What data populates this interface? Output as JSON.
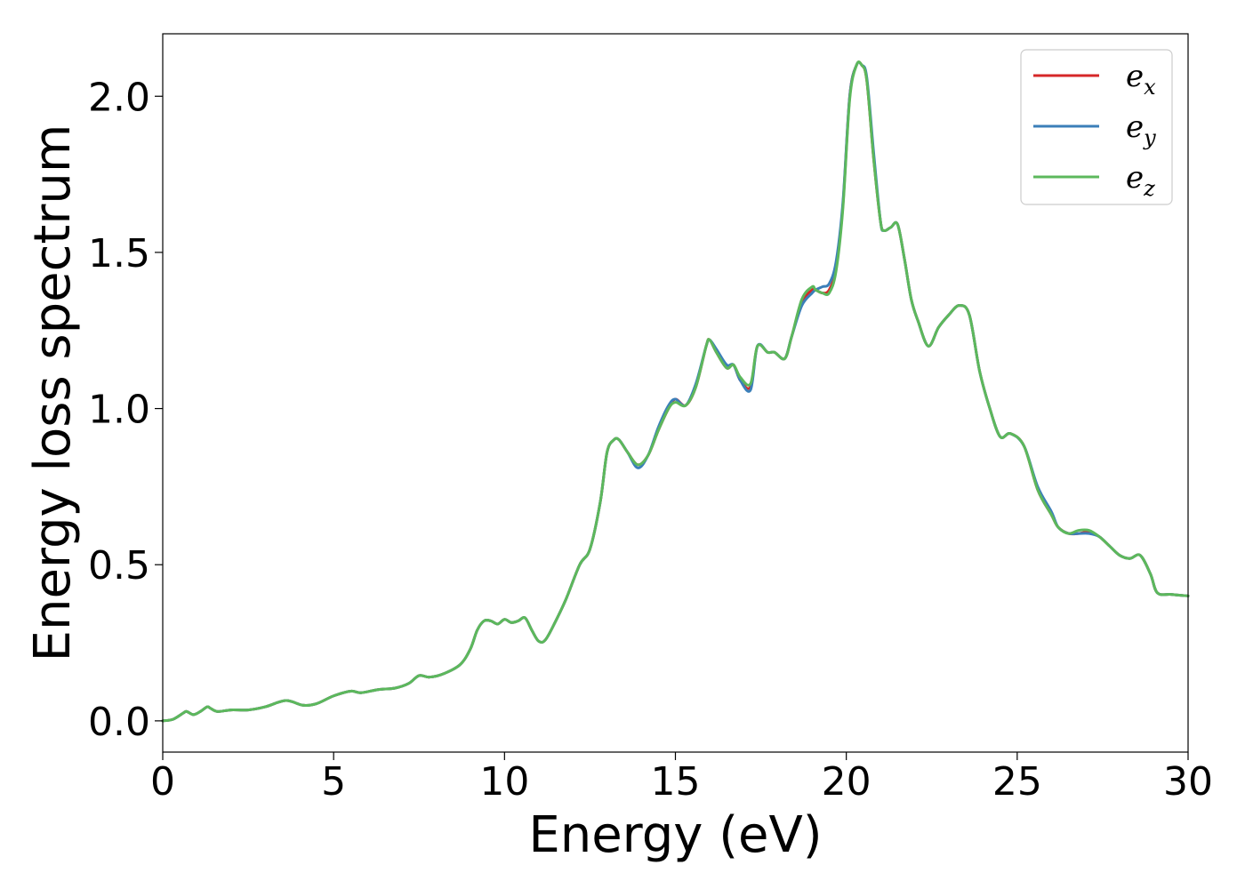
{
  "chart_data": {
    "type": "line",
    "xlabel": "Energy (eV)",
    "ylabel": "Energy loss spectrum",
    "xlim": [
      0,
      30
    ],
    "ylim": [
      -0.1,
      2.2
    ],
    "xticks": [
      0,
      5,
      10,
      15,
      20,
      25,
      30
    ],
    "xtick_labels": [
      "0",
      "5",
      "10",
      "15",
      "20",
      "25",
      "30"
    ],
    "yticks": [
      0.0,
      0.5,
      1.0,
      1.5,
      2.0
    ],
    "ytick_labels": [
      "0.0",
      "0.5",
      "1.0",
      "1.5",
      "2.0"
    ],
    "grid": false,
    "legend_position": "top-right",
    "x": [
      0,
      0.3,
      0.6,
      0.7,
      0.9,
      1.1,
      1.3,
      1.4,
      1.6,
      2.0,
      2.5,
      3.0,
      3.6,
      4.1,
      4.5,
      5.0,
      5.5,
      5.8,
      6.3,
      6.8,
      7.2,
      7.5,
      7.8,
      8.2,
      8.7,
      9.0,
      9.2,
      9.4,
      9.6,
      9.8,
      10.0,
      10.2,
      10.4,
      10.6,
      10.8,
      11.0,
      11.2,
      11.5,
      11.8,
      12.2,
      12.5,
      12.8,
      13.0,
      13.2,
      13.35,
      13.6,
      13.9,
      14.2,
      14.5,
      14.8,
      15.0,
      15.3,
      15.6,
      15.9,
      16.0,
      16.2,
      16.5,
      16.7,
      16.9,
      17.2,
      17.4,
      17.7,
      17.9,
      18.2,
      18.4,
      18.7,
      19.0,
      19.1,
      19.3,
      19.5,
      19.7,
      19.9,
      20.1,
      20.3,
      20.45,
      20.6,
      20.8,
      21.0,
      21.1,
      21.3,
      21.5,
      21.7,
      21.9,
      22.1,
      22.4,
      22.7,
      23.0,
      23.3,
      23.6,
      23.9,
      24.2,
      24.5,
      24.8,
      25.2,
      25.6,
      26.0,
      26.2,
      26.5,
      26.8,
      27.1,
      27.4,
      27.7,
      28.0,
      28.3,
      28.6,
      28.9,
      29.1,
      29.5,
      30.0
    ],
    "series": [
      {
        "name": "e_x",
        "label_base": "e",
        "label_sub": "x",
        "color": "#d62728",
        "values": [
          0.0,
          0.005,
          0.025,
          0.03,
          0.02,
          0.03,
          0.045,
          0.04,
          0.03,
          0.035,
          0.035,
          0.045,
          0.065,
          0.05,
          0.055,
          0.08,
          0.095,
          0.09,
          0.1,
          0.105,
          0.12,
          0.145,
          0.14,
          0.15,
          0.18,
          0.23,
          0.29,
          0.32,
          0.32,
          0.31,
          0.325,
          0.315,
          0.32,
          0.33,
          0.29,
          0.255,
          0.26,
          0.32,
          0.39,
          0.5,
          0.55,
          0.7,
          0.86,
          0.9,
          0.9,
          0.86,
          0.82,
          0.85,
          0.93,
          1.0,
          1.03,
          1.01,
          1.07,
          1.2,
          1.22,
          1.18,
          1.13,
          1.14,
          1.09,
          1.07,
          1.2,
          1.18,
          1.18,
          1.16,
          1.23,
          1.34,
          1.38,
          1.38,
          1.37,
          1.38,
          1.45,
          1.65,
          2.0,
          2.1,
          2.1,
          2.05,
          1.8,
          1.6,
          1.57,
          1.58,
          1.59,
          1.48,
          1.35,
          1.28,
          1.2,
          1.26,
          1.3,
          1.33,
          1.3,
          1.12,
          1.0,
          0.91,
          0.92,
          0.88,
          0.74,
          0.66,
          0.62,
          0.6,
          0.6,
          0.605,
          0.59,
          0.56,
          0.53,
          0.52,
          0.53,
          0.47,
          0.41,
          0.405,
          0.4
        ]
      },
      {
        "name": "e_y",
        "label_base": "e",
        "label_sub": "y",
        "color": "#3b7fb9",
        "values": [
          0.0,
          0.005,
          0.025,
          0.03,
          0.02,
          0.03,
          0.045,
          0.04,
          0.03,
          0.035,
          0.035,
          0.045,
          0.065,
          0.05,
          0.055,
          0.08,
          0.095,
          0.09,
          0.1,
          0.105,
          0.12,
          0.145,
          0.14,
          0.15,
          0.18,
          0.23,
          0.29,
          0.32,
          0.32,
          0.31,
          0.325,
          0.315,
          0.32,
          0.33,
          0.29,
          0.255,
          0.26,
          0.32,
          0.39,
          0.5,
          0.55,
          0.7,
          0.86,
          0.9,
          0.9,
          0.86,
          0.81,
          0.85,
          0.94,
          1.01,
          1.03,
          1.01,
          1.08,
          1.2,
          1.22,
          1.19,
          1.14,
          1.14,
          1.09,
          1.06,
          1.2,
          1.18,
          1.18,
          1.16,
          1.23,
          1.33,
          1.37,
          1.38,
          1.39,
          1.4,
          1.47,
          1.66,
          2.0,
          2.1,
          2.1,
          2.06,
          1.82,
          1.6,
          1.57,
          1.58,
          1.59,
          1.48,
          1.35,
          1.28,
          1.2,
          1.26,
          1.3,
          1.33,
          1.3,
          1.12,
          1.0,
          0.91,
          0.92,
          0.88,
          0.75,
          0.67,
          0.62,
          0.6,
          0.6,
          0.6,
          0.59,
          0.56,
          0.53,
          0.52,
          0.53,
          0.47,
          0.41,
          0.405,
          0.4
        ]
      },
      {
        "name": "e_z",
        "label_base": "e",
        "label_sub": "z",
        "color": "#5cb85c",
        "values": [
          0.0,
          0.005,
          0.025,
          0.03,
          0.02,
          0.03,
          0.045,
          0.04,
          0.03,
          0.035,
          0.035,
          0.045,
          0.065,
          0.05,
          0.055,
          0.08,
          0.095,
          0.09,
          0.1,
          0.105,
          0.12,
          0.145,
          0.14,
          0.15,
          0.18,
          0.23,
          0.29,
          0.32,
          0.32,
          0.31,
          0.325,
          0.315,
          0.32,
          0.33,
          0.29,
          0.255,
          0.26,
          0.32,
          0.39,
          0.5,
          0.55,
          0.7,
          0.86,
          0.9,
          0.9,
          0.86,
          0.82,
          0.85,
          0.93,
          1.0,
          1.02,
          1.01,
          1.07,
          1.2,
          1.22,
          1.18,
          1.13,
          1.14,
          1.1,
          1.08,
          1.2,
          1.18,
          1.18,
          1.16,
          1.23,
          1.35,
          1.39,
          1.38,
          1.37,
          1.37,
          1.44,
          1.64,
          1.99,
          2.1,
          2.1,
          2.05,
          1.8,
          1.6,
          1.57,
          1.58,
          1.59,
          1.48,
          1.35,
          1.28,
          1.2,
          1.26,
          1.3,
          1.33,
          1.3,
          1.12,
          1.0,
          0.91,
          0.92,
          0.88,
          0.74,
          0.66,
          0.62,
          0.6,
          0.61,
          0.61,
          0.59,
          0.56,
          0.53,
          0.52,
          0.53,
          0.47,
          0.41,
          0.405,
          0.4
        ]
      }
    ]
  }
}
